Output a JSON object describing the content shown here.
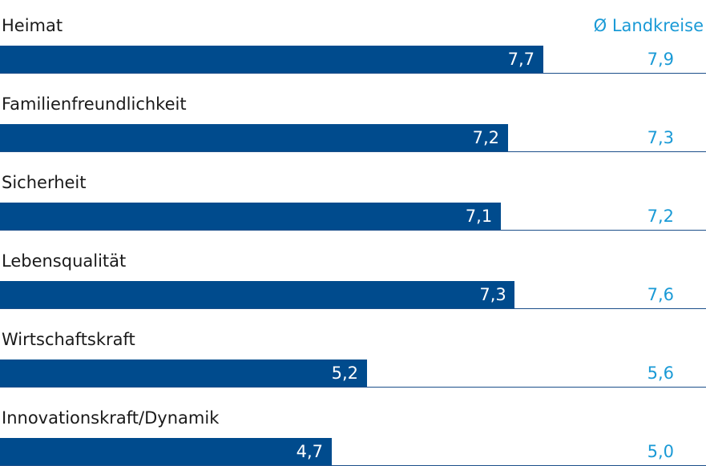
{
  "colors": {
    "bar": "#004b8d",
    "average_text": "#1a9ad6",
    "label_text": "#1a1a1a",
    "bar_value_text": "#ffffff",
    "line": "#1b4f8a"
  },
  "chart_data": {
    "type": "bar",
    "orientation": "horizontal",
    "legend": "Ø Landkreise",
    "categories": [
      "Heimat",
      "Familienfreundlichkeit",
      "Sicherheit",
      "Lebensqualität",
      "Wirtschaftskraft",
      "Innovationskraft/Dynamik"
    ],
    "values": [
      7.7,
      7.2,
      7.1,
      7.3,
      5.2,
      4.7
    ],
    "value_labels": [
      "7,7",
      "7,2",
      "7,1",
      "7,3",
      "5,2",
      "4,7"
    ],
    "averages": [
      7.9,
      7.3,
      7.2,
      7.6,
      5.6,
      5.0
    ],
    "average_labels": [
      "7,9",
      "7,3",
      "7,2",
      "7,6",
      "5,6",
      "5,0"
    ],
    "xlim": [
      0,
      10
    ],
    "grid": false
  }
}
